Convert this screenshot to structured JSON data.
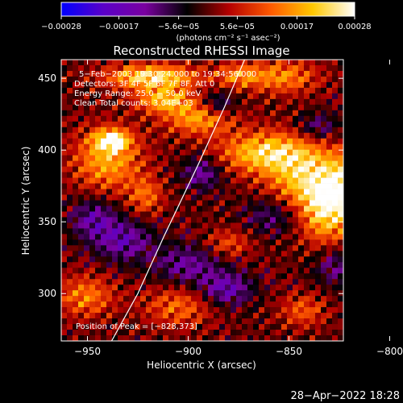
{
  "chart_data": {
    "type": "heatmap",
    "title": "Reconstructed RHESSI Image",
    "xlabel": "Heliocentric X (arcsec)",
    "ylabel": "Heliocentric Y (arcsec)",
    "xlim": [
      -963,
      -823
    ],
    "ylim": [
      267,
      463
    ],
    "x_ticks": [
      -950,
      -900,
      -850,
      -800
    ],
    "x_tick_labels": [
      "−950",
      "−900",
      "−850",
      "−800"
    ],
    "y_ticks": [
      300,
      350,
      400,
      450
    ],
    "y_tick_labels": [
      "300",
      "350",
      "400",
      "450"
    ],
    "colorbar": {
      "range": [
        -0.00028,
        0.00028
      ],
      "ticks": [
        -0.00028,
        -0.00017,
        -5.6e-05,
        5.6e-05,
        0.00017,
        0.00028
      ],
      "tick_labels": [
        "−0.00028",
        "−0.00017",
        "−5.6e−05",
        "5.6e−05",
        "0.00017",
        "0.00028"
      ],
      "unit_label": "(photons cm⁻² s⁻¹ asec⁻²)",
      "colors": [
        "#0000ff",
        "#5a00c8",
        "#7a00a0",
        "#000000",
        "#b40000",
        "#ff5a00",
        "#ffc800",
        "#ffffff"
      ]
    },
    "annotations": [
      "5−Feb−2003 19:30:24.000 to 19:34:56.000",
      "Detectors: 3F 4F 5F 6F 7F 8F, Att 0",
      "Energy Range: 25.0 − 50.0 keV",
      "Clean     Total counts: 3.04E+03"
    ],
    "peak_label": "Position of Peak = [−828,373]",
    "limb_curve": [
      [
        -938,
        267
      ],
      [
        -925,
        300
      ],
      [
        -912,
        340
      ],
      [
        -895,
        390
      ],
      [
        -882,
        430
      ],
      [
        -872,
        463
      ]
    ],
    "blobs": [
      {
        "x": -918,
        "y": 451,
        "sx": 16,
        "sy": 6,
        "v": 0.00024
      },
      {
        "x": -912,
        "y": 435,
        "sx": 10,
        "sy": 6,
        "v": 0.00019
      },
      {
        "x": -895,
        "y": 422,
        "sx": 12,
        "sy": 8,
        "v": 0.00017
      },
      {
        "x": -853,
        "y": 451,
        "sx": 12,
        "sy": 8,
        "v": 0.00015
      },
      {
        "x": -875,
        "y": 452,
        "sx": 8,
        "sy": 6,
        "v": 0.00013
      },
      {
        "x": -940,
        "y": 393,
        "sx": 12,
        "sy": 15,
        "v": 0.00018
      },
      {
        "x": -938,
        "y": 407,
        "sx": 6,
        "sy": 5,
        "v": 0.00023
      },
      {
        "x": -921,
        "y": 368,
        "sx": 6,
        "sy": 9,
        "v": 0.00012
      },
      {
        "x": -864,
        "y": 398,
        "sx": 15,
        "sy": 10,
        "v": 0.0002
      },
      {
        "x": -845,
        "y": 380,
        "sx": 12,
        "sy": 20,
        "v": 0.00018
      },
      {
        "x": -832,
        "y": 362,
        "sx": 8,
        "sy": 20,
        "v": 0.0002
      },
      {
        "x": -818,
        "y": 375,
        "sx": 8,
        "sy": 16,
        "v": 0.00023
      },
      {
        "x": -811,
        "y": 342,
        "sx": 7,
        "sy": 15,
        "v": 0.00016
      },
      {
        "x": -803,
        "y": 405,
        "sx": 6,
        "sy": 7,
        "v": 0.00012
      },
      {
        "x": -951,
        "y": 298,
        "sx": 10,
        "sy": 10,
        "v": 0.00014
      },
      {
        "x": -905,
        "y": 291,
        "sx": 12,
        "sy": 10,
        "v": 0.00012
      },
      {
        "x": -843,
        "y": 288,
        "sx": 8,
        "sy": 8,
        "v": 0.00011
      },
      {
        "x": -880,
        "y": 335,
        "sx": 8,
        "sy": 7,
        "v": 0.0001
      },
      {
        "x": -857,
        "y": 355,
        "sx": 10,
        "sy": 10,
        "v": -0.00012
      },
      {
        "x": -893,
        "y": 384,
        "sx": 7,
        "sy": 8,
        "v": -0.00013
      },
      {
        "x": -932,
        "y": 337,
        "sx": 10,
        "sy": 10,
        "v": -0.00014
      },
      {
        "x": -947,
        "y": 352,
        "sx": 8,
        "sy": 10,
        "v": -0.00013
      },
      {
        "x": -900,
        "y": 320,
        "sx": 12,
        "sy": 10,
        "v": -0.00012
      },
      {
        "x": -881,
        "y": 303,
        "sx": 9,
        "sy": 8,
        "v": -0.00015
      },
      {
        "x": -826,
        "y": 320,
        "sx": 9,
        "sy": 10,
        "v": -0.00011
      },
      {
        "x": -808,
        "y": 296,
        "sx": 7,
        "sy": 9,
        "v": -0.0001
      },
      {
        "x": -885,
        "y": 432,
        "sx": 6,
        "sy": 6,
        "v": -0.00012
      },
      {
        "x": -836,
        "y": 416,
        "sx": 8,
        "sy": 7,
        "v": -0.00011
      }
    ]
  },
  "timestamp": "28−Apr−2022 18:28"
}
